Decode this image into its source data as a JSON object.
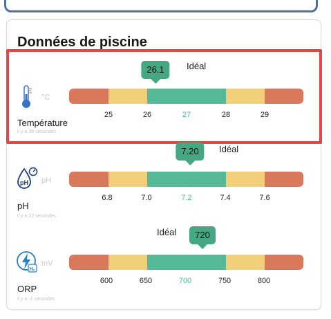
{
  "section": {
    "title": "Données de piscine"
  },
  "colors": {
    "red": "#d9795b",
    "yellow": "#f2cf7a",
    "green": "#55b896",
    "badge": "#46a882",
    "highlight": "#e04848"
  },
  "metrics": [
    {
      "name": "Température",
      "unit": "°C",
      "icon": "thermometer-icon",
      "value": "26.1",
      "status": "Idéal",
      "ago": "il y a 39 secondes",
      "ticks": [
        "25",
        "26",
        "27",
        "28",
        "29"
      ],
      "ideal_tick": "27"
    },
    {
      "name": "pH",
      "unit": "pH",
      "icon": "ph-drop-icon",
      "value": "7.20",
      "status": "Idéal",
      "ago": "il y a 22 secondes",
      "ticks": [
        "6.8",
        "7.0",
        "7.2",
        "7.4",
        "7.6"
      ],
      "ideal_tick": "7.2"
    },
    {
      "name": "ORP",
      "unit": "mV",
      "icon": "orp-bolt-icon",
      "value": "720",
      "status": "Idéal",
      "ago": "il y a -1 secondes",
      "ticks": [
        "600",
        "650",
        "700",
        "750",
        "800"
      ],
      "ideal_tick": "700"
    }
  ]
}
